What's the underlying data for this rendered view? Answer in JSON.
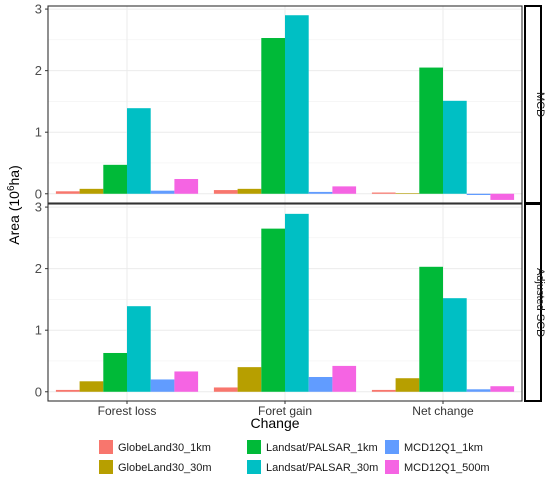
{
  "chart_data": {
    "type": "bar",
    "xlabel": "Change",
    "ylabel": {
      "prefix": "Area (10",
      "sup": "6",
      "suffix": "ha)"
    },
    "categories": [
      "Forest loss",
      "Foret gain",
      "Net change"
    ],
    "ylim": [
      -0.15,
      3.05
    ],
    "yticks": [
      0,
      1,
      2,
      3
    ],
    "grid": true,
    "legend_position": "bottom",
    "series_names": [
      "GlobeLand30_1km",
      "GlobeLand30_30m",
      "Landsat/PALSAR_1km",
      "Landsat/PALSAR_30m",
      "MCD12Q1_1km",
      "MCD12Q1_500m"
    ],
    "colors": [
      "#F8766D",
      "#B79F00",
      "#00BA38",
      "#00BFC4",
      "#619CFF",
      "#F564E3"
    ],
    "facets": [
      {
        "strip": "MCD",
        "values": [
          [
            0.04,
            0.08,
            0.47,
            1.39,
            0.05,
            0.24
          ],
          [
            0.06,
            0.08,
            2.53,
            2.9,
            0.03,
            0.12
          ],
          [
            0.02,
            0.01,
            2.05,
            1.51,
            -0.02,
            -0.1
          ]
        ]
      },
      {
        "strip": "Adjusted SCD",
        "values": [
          [
            0.03,
            0.17,
            0.63,
            1.39,
            0.2,
            0.33
          ],
          [
            0.07,
            0.4,
            2.65,
            2.89,
            0.24,
            0.42
          ],
          [
            0.03,
            0.22,
            2.03,
            1.52,
            0.04,
            0.09
          ]
        ]
      }
    ]
  }
}
